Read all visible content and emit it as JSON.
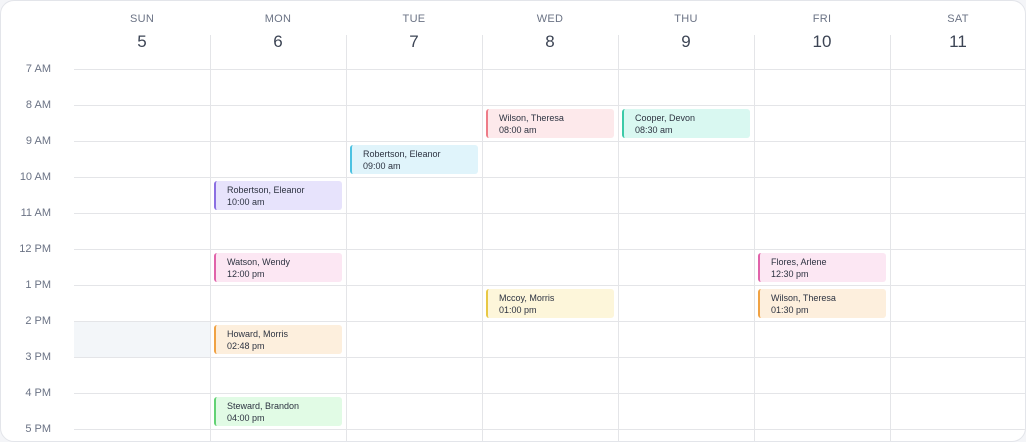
{
  "days": [
    {
      "name": "SUN",
      "num": "5"
    },
    {
      "name": "MON",
      "num": "6"
    },
    {
      "name": "TUE",
      "num": "7"
    },
    {
      "name": "WED",
      "num": "8"
    },
    {
      "name": "THU",
      "num": "9"
    },
    {
      "name": "FRI",
      "num": "10"
    },
    {
      "name": "SAT",
      "num": "11"
    }
  ],
  "hours": [
    "7 AM",
    "8 AM",
    "9 AM",
    "10 AM",
    "11 AM",
    "12 PM",
    "1 PM",
    "2 PM",
    "3 PM",
    "4 PM",
    "5 PM"
  ],
  "highlight": {
    "day": "SUN",
    "hour": "2 PM"
  },
  "events": [
    {
      "name": "Wilson, Theresa",
      "time": "08:00 am",
      "day": "WED",
      "slot": "8 AM",
      "bg": "#fde9eb",
      "border": "#ee7c88"
    },
    {
      "name": "Cooper, Devon",
      "time": "08:30 am",
      "day": "THU",
      "slot": "8 AM",
      "bg": "#d9f8f1",
      "border": "#3ccaa8"
    },
    {
      "name": "Robertson, Eleanor",
      "time": "09:00 am",
      "day": "TUE",
      "slot": "9 AM",
      "bg": "#e0f4fb",
      "border": "#4cc2e2"
    },
    {
      "name": "Robertson, Eleanor",
      "time": "10:00 am",
      "day": "MON",
      "slot": "10 AM",
      "bg": "#e7e3fc",
      "border": "#8b6fe2"
    },
    {
      "name": "Watson, Wendy",
      "time": "12:00 pm",
      "day": "MON",
      "slot": "12 PM",
      "bg": "#fce7f3",
      "border": "#e063aa"
    },
    {
      "name": "Flores, Arlene",
      "time": "12:30 pm",
      "day": "FRI",
      "slot": "12 PM",
      "bg": "#fce7f3",
      "border": "#e063aa"
    },
    {
      "name": "Mccoy, Morris",
      "time": "01:00 pm",
      "day": "WED",
      "slot": "1 PM",
      "bg": "#fdf6da",
      "border": "#e8c845"
    },
    {
      "name": "Wilson, Theresa",
      "time": "01:30 pm",
      "day": "FRI",
      "slot": "1 PM",
      "bg": "#fdefdd",
      "border": "#f0a244"
    },
    {
      "name": "Howard, Morris",
      "time": "02:48 pm",
      "day": "MON",
      "slot": "2 PM",
      "bg": "#fdefdd",
      "border": "#f0a244"
    },
    {
      "name": "Steward, Brandon",
      "time": "04:00 pm",
      "day": "MON",
      "slot": "4 PM",
      "bg": "#e1fbe5",
      "border": "#62d274"
    }
  ]
}
